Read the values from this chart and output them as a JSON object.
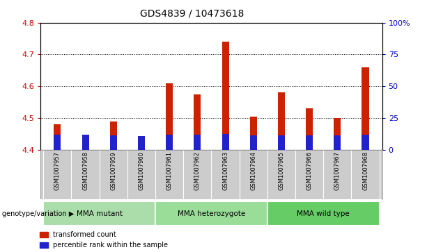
{
  "title": "GDS4839 / 10473618",
  "samples": [
    "GSM1007957",
    "GSM1007958",
    "GSM1007959",
    "GSM1007960",
    "GSM1007961",
    "GSM1007962",
    "GSM1007963",
    "GSM1007964",
    "GSM1007965",
    "GSM1007966",
    "GSM1007967",
    "GSM1007968"
  ],
  "red_values": [
    4.48,
    4.415,
    4.49,
    4.425,
    4.61,
    4.575,
    4.74,
    4.505,
    4.58,
    4.53,
    4.5,
    4.66
  ],
  "blue_values": [
    4.448,
    4.448,
    4.446,
    4.443,
    4.448,
    4.448,
    4.45,
    4.446,
    4.446,
    4.446,
    4.446,
    4.448
  ],
  "ymin": 4.4,
  "ymax": 4.8,
  "y2min": 0,
  "y2max": 100,
  "y_ticks": [
    4.4,
    4.5,
    4.6,
    4.7,
    4.8
  ],
  "y2_ticks": [
    0,
    25,
    50,
    75,
    100
  ],
  "y2_tick_labels": [
    "0",
    "25",
    "50",
    "75",
    "100%"
  ],
  "ytick_color": "#cc0000",
  "y2tick_color": "#0000cc",
  "bar_color": "#cc2200",
  "blue_color": "#2222cc",
  "groups": [
    {
      "label": "MMA mutant",
      "start": 0,
      "end": 4,
      "color": "#aaddaa"
    },
    {
      "label": "MMA heterozygote",
      "start": 4,
      "end": 8,
      "color": "#99dd99"
    },
    {
      "label": "MMA wild type",
      "start": 8,
      "end": 12,
      "color": "#66cc66"
    }
  ],
  "genotype_label": "genotype/variation",
  "legend_red": "transformed count",
  "legend_blue": "percentile rank within the sample",
  "tick_bg_color": "#cccccc",
  "bar_width": 0.25,
  "plot_bg_color": "#ffffff"
}
